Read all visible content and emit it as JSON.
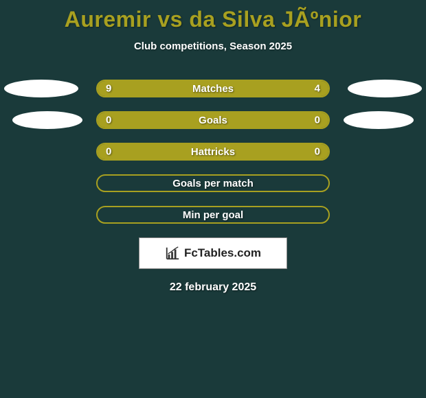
{
  "background_color": "#1a3a3a",
  "title": "Auremir vs da Silva JÃºnior",
  "title_color": "#a8a020",
  "title_fontsize": 32,
  "subtitle": "Club competitions, Season 2025",
  "subtitle_color": "#ffffff",
  "subtitle_fontsize": 15,
  "bar_border_color": "#a8a020",
  "bar_fill_color": "#a8a020",
  "bar_text_color": "#ffffff",
  "ellipse_color": "#ffffff",
  "rows": [
    {
      "label": "Matches",
      "left_value": "9",
      "right_value": "4",
      "left_pct": 69,
      "right_pct": 31,
      "show_values": true,
      "filled": true,
      "left_ellipse": "l1",
      "right_ellipse": "r1"
    },
    {
      "label": "Goals",
      "left_value": "0",
      "right_value": "0",
      "left_pct": 50,
      "right_pct": 50,
      "show_values": true,
      "filled": true,
      "left_ellipse": "l2",
      "right_ellipse": "r2"
    },
    {
      "label": "Hattricks",
      "left_value": "0",
      "right_value": "0",
      "left_pct": 50,
      "right_pct": 50,
      "show_values": true,
      "filled": true,
      "left_ellipse": null,
      "right_ellipse": null
    },
    {
      "label": "Goals per match",
      "left_value": "",
      "right_value": "",
      "left_pct": 0,
      "right_pct": 0,
      "show_values": false,
      "filled": false,
      "left_ellipse": null,
      "right_ellipse": null
    },
    {
      "label": "Min per goal",
      "left_value": "",
      "right_value": "",
      "left_pct": 0,
      "right_pct": 0,
      "show_values": false,
      "filled": false,
      "left_ellipse": null,
      "right_ellipse": null
    }
  ],
  "logo": {
    "text": "FcTables.com",
    "text_color": "#222222",
    "box_bg": "#ffffff",
    "box_border": "#888888",
    "icon_color": "#333333"
  },
  "date": "22 february 2025",
  "date_color": "#ffffff",
  "date_fontsize": 16
}
